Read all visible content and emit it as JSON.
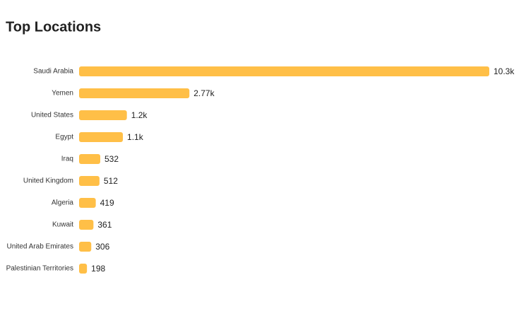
{
  "chart_data": {
    "type": "bar",
    "orientation": "horizontal",
    "title": "Top Locations",
    "categories": [
      "Saudi Arabia",
      "Yemen",
      "United States",
      "Egypt",
      "Iraq",
      "United Kingdom",
      "Algeria",
      "Kuwait",
      "United Arab Emirates",
      "Palestinian Territories"
    ],
    "values": [
      10300,
      2770,
      1200,
      1100,
      532,
      512,
      419,
      361,
      306,
      198
    ],
    "value_labels": [
      "10.3k",
      "2.77k",
      "1.2k",
      "1.1k",
      "532",
      "512",
      "419",
      "361",
      "306",
      "198"
    ],
    "color": "#ffbf47"
  }
}
